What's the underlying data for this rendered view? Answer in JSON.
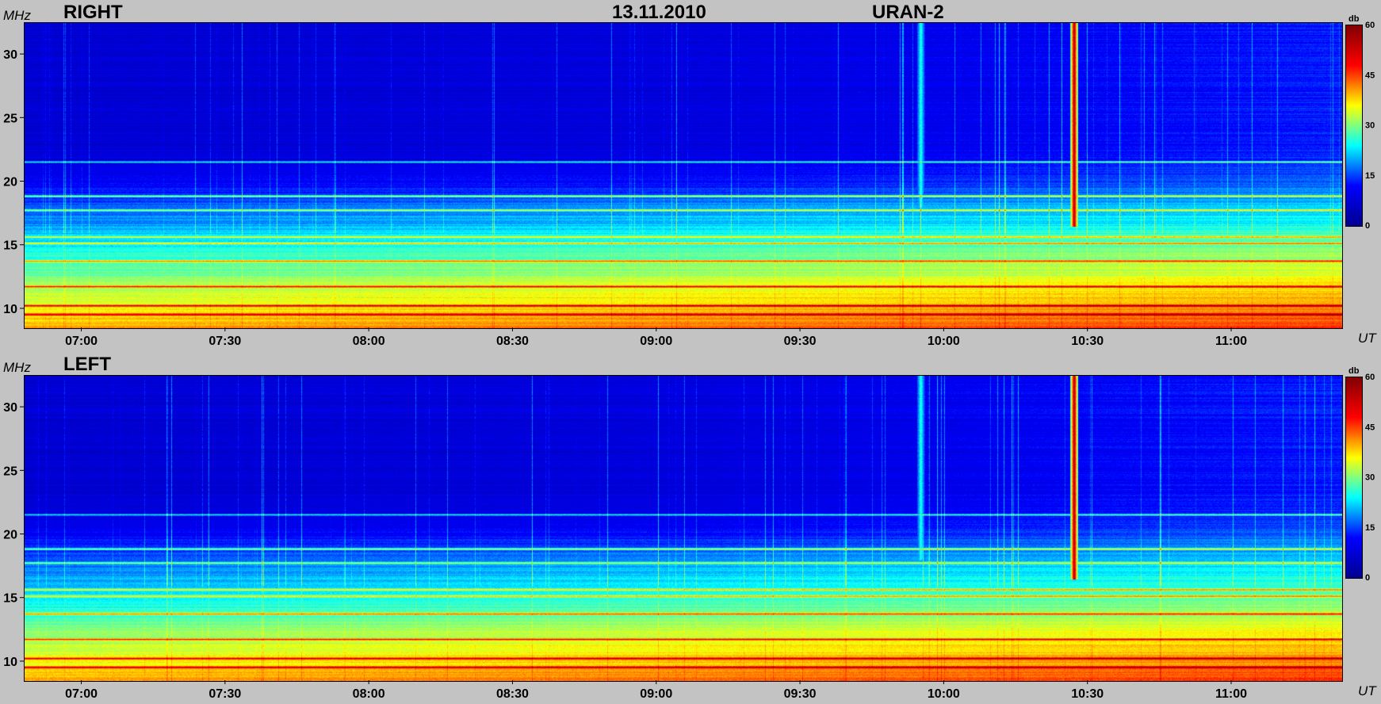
{
  "header": {
    "date": "13.11.2010",
    "instrument": "URAN-2"
  },
  "colors": {
    "background": "#c3c3c3",
    "colormap": [
      "#00008f",
      "#0000ff",
      "#00ffff",
      "#ffff00",
      "#ff0000",
      "#800000"
    ]
  },
  "chart_data": [
    {
      "type": "heatmap",
      "title": "RIGHT",
      "ylabel": "MHz",
      "xlabel": "UT",
      "x_ticks": [
        "07:00",
        "07:30",
        "08:00",
        "08:30",
        "09:00",
        "09:30",
        "10:00",
        "10:30",
        "11:00"
      ],
      "y_ticks": [
        10,
        15,
        20,
        25,
        30
      ],
      "ylim": [
        8.5,
        32.5
      ],
      "colorbar": {
        "label": "db",
        "ticks": [
          0,
          15,
          30,
          45,
          60
        ]
      },
      "events": [
        {
          "time": "10:27",
          "freq_range": [
            16.5,
            32.5
          ],
          "intensity_db": 50
        },
        {
          "time": "09:55",
          "freq_range": [
            18,
            32.5
          ],
          "intensity_db": 20
        }
      ],
      "interference_bands_mhz": [
        9.6,
        10.3,
        11.8,
        13.8,
        15.2,
        15.7,
        17.8,
        18.9,
        21.6
      ]
    },
    {
      "type": "heatmap",
      "title": "LEFT",
      "ylabel": "MHz",
      "xlabel": "UT",
      "x_ticks": [
        "07:00",
        "07:30",
        "08:00",
        "08:30",
        "09:00",
        "09:30",
        "10:00",
        "10:30",
        "11:00"
      ],
      "y_ticks": [
        10,
        15,
        20,
        25,
        30
      ],
      "ylim": [
        8.5,
        32.5
      ],
      "colorbar": {
        "label": "db",
        "ticks": [
          0,
          15,
          30,
          45,
          60
        ]
      },
      "events": [
        {
          "time": "10:27",
          "freq_range": [
            16.5,
            32.5
          ],
          "intensity_db": 50
        },
        {
          "time": "09:55",
          "freq_range": [
            18,
            32.5
          ],
          "intensity_db": 20
        }
      ],
      "interference_bands_mhz": [
        9.6,
        10.3,
        11.8,
        13.8,
        15.2,
        15.7,
        17.8,
        18.9,
        21.6
      ]
    }
  ]
}
